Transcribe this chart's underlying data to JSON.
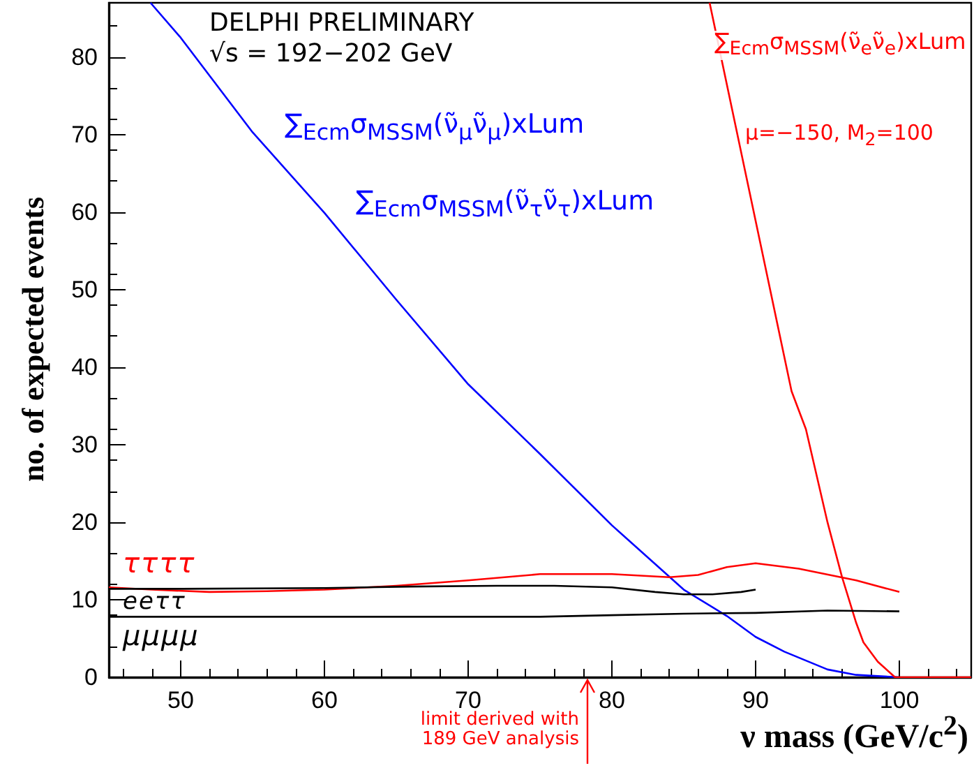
{
  "chart_data": {
    "type": "line",
    "xlabel": "ν mass (GeV/c$^{2}$)",
    "ylabel": "no. of expected events",
    "xlim": [
      45,
      105
    ],
    "ylim": [
      0,
      87
    ],
    "xticks": [
      50,
      60,
      70,
      80,
      90,
      100
    ],
    "yticks": [
      0,
      10,
      20,
      30,
      40,
      50,
      60,
      70,
      80
    ],
    "grid": false,
    "legend": false,
    "marker": "none",
    "line_style": "solid",
    "series": [
      {
        "color": "#0000ff",
        "x": [
          47.9,
          50,
          55,
          60,
          65,
          70,
          75,
          80,
          85,
          88,
          90,
          92,
          95,
          97,
          100
        ],
        "values": [
          87,
          82.5,
          70.3,
          59.9,
          48.7,
          37.8,
          28.8,
          19.6,
          11.3,
          7.9,
          5.2,
          3.3,
          1.0,
          0.3,
          0
        ]
      },
      {
        "color": "#ff0000",
        "x": [
          86.8,
          92.5,
          93.5,
          95.0,
          96.0,
          97.0,
          97.5,
          98.5,
          99.7,
          105
        ],
        "values": [
          87,
          36.9,
          32,
          20,
          13,
          7,
          4.5,
          2,
          0,
          0
        ]
      },
      {
        "name": "ττττ",
        "color": "#ff0000",
        "x": [
          45,
          48,
          52,
          56,
          60,
          65,
          70,
          75,
          80,
          84,
          86,
          88,
          90,
          93,
          97,
          100
        ],
        "values": [
          11.6,
          11.3,
          11.0,
          11.1,
          11.3,
          11.8,
          12.5,
          13.3,
          13.3,
          12.9,
          13.2,
          14.2,
          14.7,
          14.0,
          12.5,
          11.0
        ]
      },
      {
        "name": "eeττ",
        "color": "#000000",
        "x": [
          45,
          50,
          60,
          66,
          72,
          76,
          80,
          83,
          85,
          87,
          89,
          90
        ],
        "values": [
          11.4,
          11.4,
          11.5,
          11.7,
          11.8,
          11.8,
          11.6,
          11.0,
          10.7,
          10.7,
          11.0,
          11.3
        ]
      },
      {
        "name": "μμμμ",
        "color": "#000000",
        "x": [
          45,
          55,
          65,
          75,
          80,
          85,
          90,
          95,
          100
        ],
        "values": [
          7.8,
          7.8,
          7.8,
          7.8,
          8.0,
          8.2,
          8.3,
          8.6,
          8.5
        ]
      }
    ],
    "annotations": [
      "DELPHI PRELIMINARY",
      "√s = 192−202 GeV",
      "∑$_{Ecm}$σ$_{MSSM}$(ν̃$_{μ}$ν̃$_{μ}$)xLum",
      "∑$_{Ecm}$σ$_{MSSM}$(ν̃$_{τ}$ν̃$_{τ}$)xLum",
      "∑$_{Ecm}$σ$_{MSSM}$(ν̃$_{e}$ν̃$_{e}$)xLum",
      "μ=−150, M$_{2}$=100",
      "limit derived with 189 GeV analysis"
    ]
  }
}
